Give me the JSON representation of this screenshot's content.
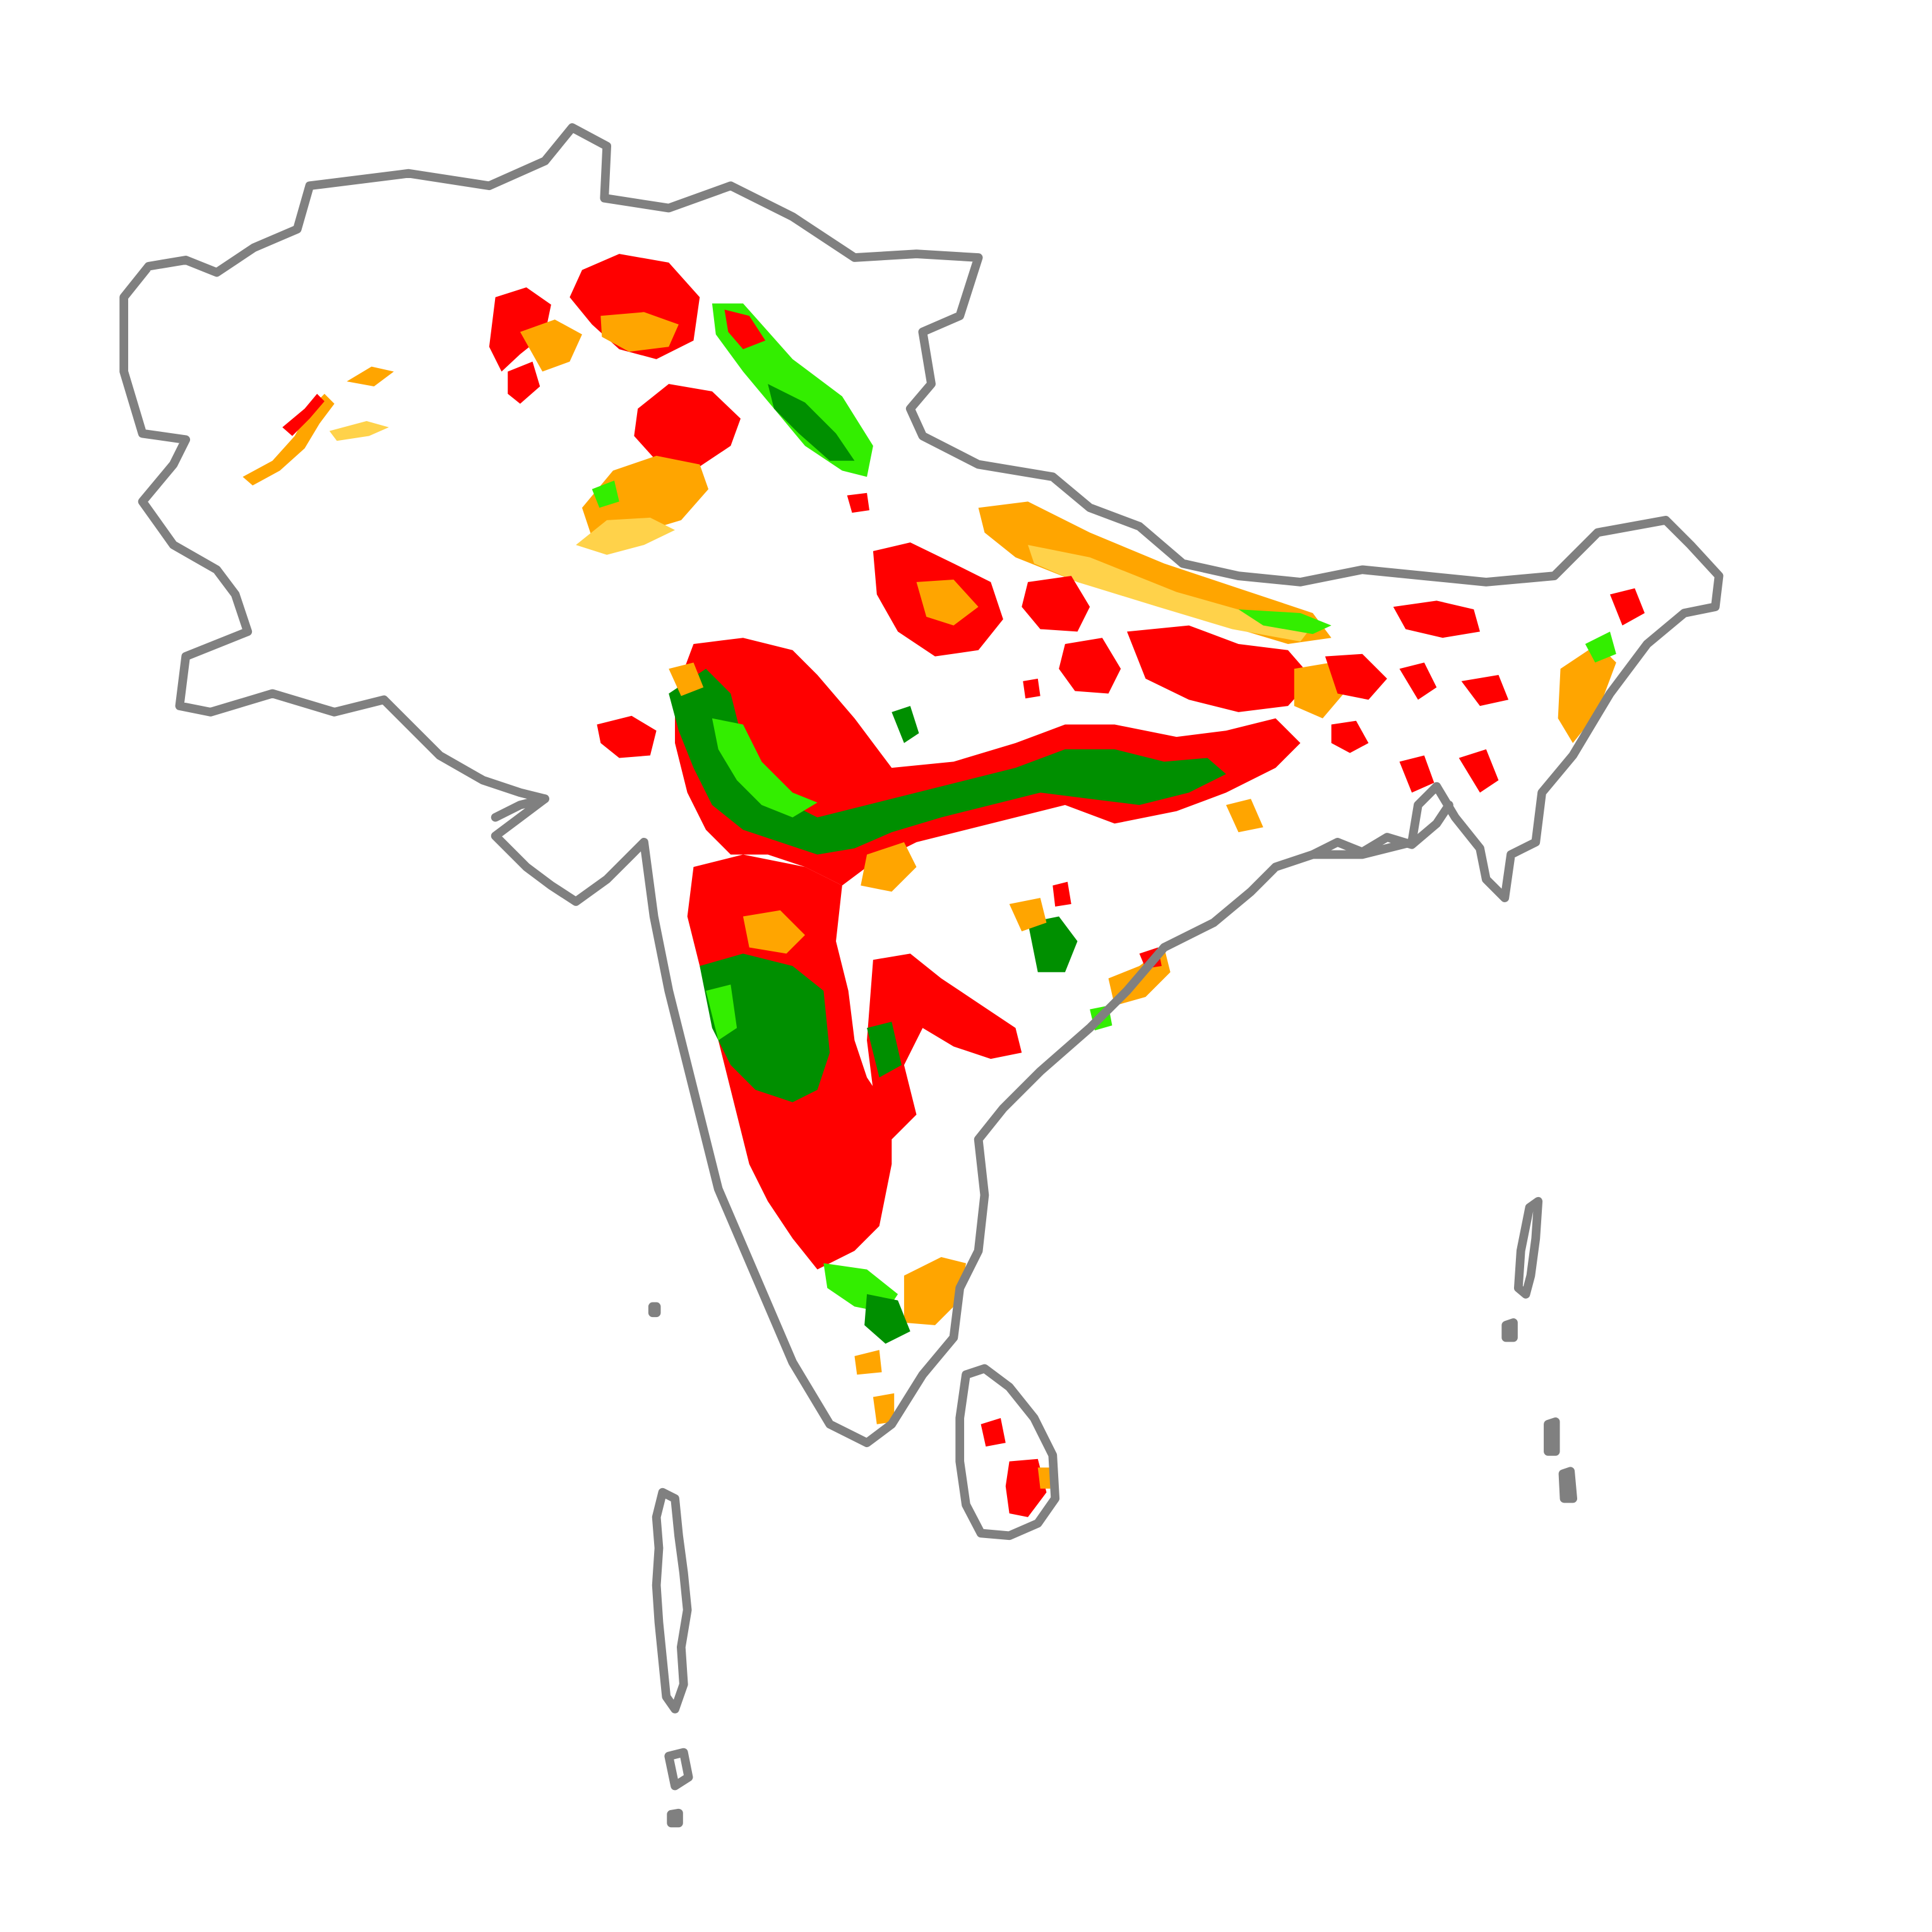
{
  "map": {
    "region": "South Asia",
    "background_color": "#ffffff",
    "outline_color": "#808080",
    "legend_visible": false,
    "title_visible": false,
    "category_colors": {
      "red": "#ff0000",
      "orange": "#ffa500",
      "yellow": "#ffd24a",
      "light_green": "#33ee00",
      "dark_green": "#008f00"
    }
  }
}
